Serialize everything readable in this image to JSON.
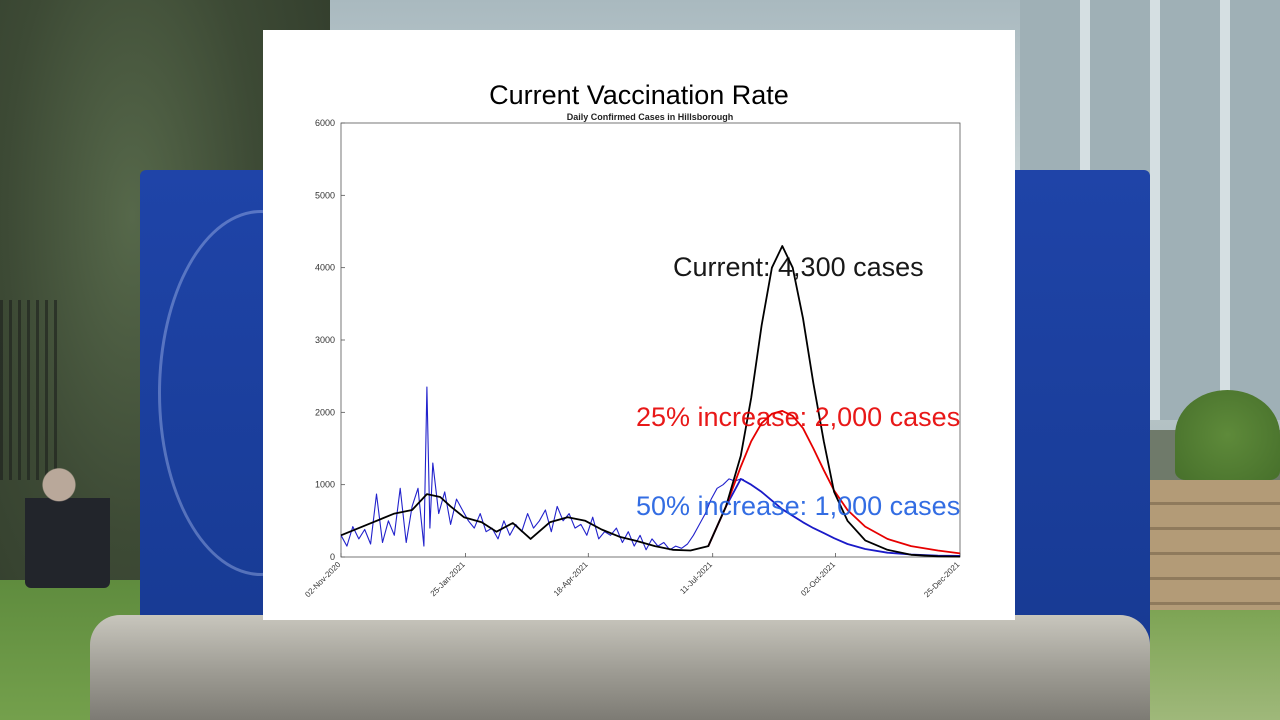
{
  "headline": "Current Vaccination Rate",
  "colors": {
    "observed": "#2222cc",
    "current": "#000000",
    "increase_25": "#e60000",
    "increase_50": "#1a1ac8",
    "label_25": "#e60000",
    "label_50": "#1e5ee0",
    "sign_blue": "#1f44a8"
  },
  "annotations": {
    "current": "Current: 4,300 cases",
    "increase_25": "25% increase: 2,000 cases",
    "increase_50": "50% increase: 1,000 cases"
  },
  "chart_data": {
    "type": "line",
    "title": "Daily Confirmed Cases in Hillsborough",
    "xlabel": "",
    "ylabel": "",
    "ylim": [
      0,
      6000
    ],
    "xlim": [
      "2020-11-02",
      "2021-12-25"
    ],
    "yticks": [
      "0",
      "1000",
      "2000",
      "3000",
      "4000",
      "5000",
      "6000"
    ],
    "xticks": [
      "02-Nov-2020",
      "25-Jan-2021",
      "18-Apr-2021",
      "11-Jul-2021",
      "02-Oct-2021",
      "25-Dec-2021"
    ],
    "grid": false,
    "legend": "none",
    "series": [
      {
        "key": "observed",
        "x": [
          "2020-11-02",
          "2020-11-06",
          "2020-11-10",
          "2020-11-14",
          "2020-11-18",
          "2020-11-22",
          "2020-11-26",
          "2020-11-30",
          "2020-12-04",
          "2020-12-08",
          "2020-12-12",
          "2020-12-16",
          "2020-12-20",
          "2020-12-24",
          "2020-12-28",
          "2020-12-30",
          "2021-01-01",
          "2021-01-03",
          "2021-01-07",
          "2021-01-11",
          "2021-01-15",
          "2021-01-19",
          "2021-01-23",
          "2021-01-27",
          "2021-01-31",
          "2021-02-04",
          "2021-02-08",
          "2021-02-12",
          "2021-02-16",
          "2021-02-20",
          "2021-02-24",
          "2021-02-28",
          "2021-03-04",
          "2021-03-08",
          "2021-03-12",
          "2021-03-16",
          "2021-03-20",
          "2021-03-24",
          "2021-03-28",
          "2021-04-01",
          "2021-04-05",
          "2021-04-09",
          "2021-04-13",
          "2021-04-17",
          "2021-04-21",
          "2021-04-25",
          "2021-04-29",
          "2021-05-03",
          "2021-05-07",
          "2021-05-11",
          "2021-05-15",
          "2021-05-19",
          "2021-05-23",
          "2021-05-27",
          "2021-05-31",
          "2021-06-04",
          "2021-06-08",
          "2021-06-12",
          "2021-06-16",
          "2021-06-20",
          "2021-06-24",
          "2021-06-28",
          "2021-07-02",
          "2021-07-06",
          "2021-07-10",
          "2021-07-14",
          "2021-07-18",
          "2021-07-22",
          "2021-07-26",
          "2021-07-30",
          "2021-08-01"
        ],
        "y": [
          300,
          150,
          420,
          250,
          380,
          180,
          870,
          200,
          500,
          300,
          950,
          200,
          700,
          950,
          150,
          2350,
          400,
          1300,
          600,
          900,
          450,
          800,
          650,
          500,
          400,
          600,
          350,
          400,
          250,
          500,
          300,
          450,
          350,
          600,
          400,
          500,
          650,
          350,
          700,
          500,
          600,
          400,
          450,
          300,
          550,
          250,
          350,
          300,
          400,
          200,
          350,
          150,
          300,
          100,
          250,
          150,
          200,
          100,
          150,
          120,
          180,
          300,
          450,
          600,
          800,
          950,
          1000,
          1080,
          1050,
          1080,
          1070
        ]
      },
      {
        "key": "current",
        "x": [
          "2020-11-02",
          "2020-11-20",
          "2020-12-08",
          "2020-12-20",
          "2020-12-30",
          "2021-01-08",
          "2021-01-15",
          "2021-01-24",
          "2021-02-05",
          "2021-02-15",
          "2021-02-26",
          "2021-03-10",
          "2021-03-23",
          "2021-04-04",
          "2021-04-16",
          "2021-04-27",
          "2021-05-09",
          "2021-05-21",
          "2021-06-02",
          "2021-06-14",
          "2021-06-26",
          "2021-07-08",
          "2021-07-20",
          "2021-07-30",
          "2021-08-06",
          "2021-08-13",
          "2021-08-20",
          "2021-08-27",
          "2021-09-03",
          "2021-09-10",
          "2021-09-17",
          "2021-09-24",
          "2021-10-01",
          "2021-10-10",
          "2021-10-22",
          "2021-11-06",
          "2021-11-22",
          "2021-12-10",
          "2021-12-25"
        ],
        "y": [
          300,
          450,
          600,
          650,
          870,
          830,
          700,
          550,
          480,
          350,
          470,
          250,
          480,
          550,
          500,
          380,
          280,
          220,
          150,
          100,
          90,
          150,
          700,
          1400,
          2200,
          3200,
          4000,
          4300,
          4000,
          3300,
          2400,
          1600,
          900,
          500,
          230,
          100,
          30,
          10,
          5
        ]
      },
      {
        "key": "increase_25",
        "x": [
          "2021-07-08",
          "2021-07-20",
          "2021-07-30",
          "2021-08-06",
          "2021-08-13",
          "2021-08-20",
          "2021-08-27",
          "2021-09-03",
          "2021-09-10",
          "2021-09-17",
          "2021-09-24",
          "2021-10-01",
          "2021-10-10",
          "2021-10-22",
          "2021-11-06",
          "2021-11-22",
          "2021-12-10",
          "2021-12-25"
        ],
        "y": [
          150,
          700,
          1250,
          1600,
          1850,
          1980,
          2020,
          1950,
          1780,
          1500,
          1200,
          920,
          650,
          420,
          250,
          150,
          90,
          50
        ]
      },
      {
        "key": "increase_50",
        "x": [
          "2021-07-08",
          "2021-07-20",
          "2021-07-30",
          "2021-08-06",
          "2021-08-13",
          "2021-08-20",
          "2021-08-27",
          "2021-09-03",
          "2021-09-10",
          "2021-09-17",
          "2021-09-24",
          "2021-10-01",
          "2021-10-10",
          "2021-10-22",
          "2021-11-06",
          "2021-11-22",
          "2021-12-10",
          "2021-12-25"
        ],
        "y": [
          150,
          700,
          1080,
          1000,
          900,
          780,
          660,
          570,
          480,
          400,
          330,
          260,
          180,
          110,
          60,
          35,
          20,
          15
        ]
      }
    ]
  }
}
